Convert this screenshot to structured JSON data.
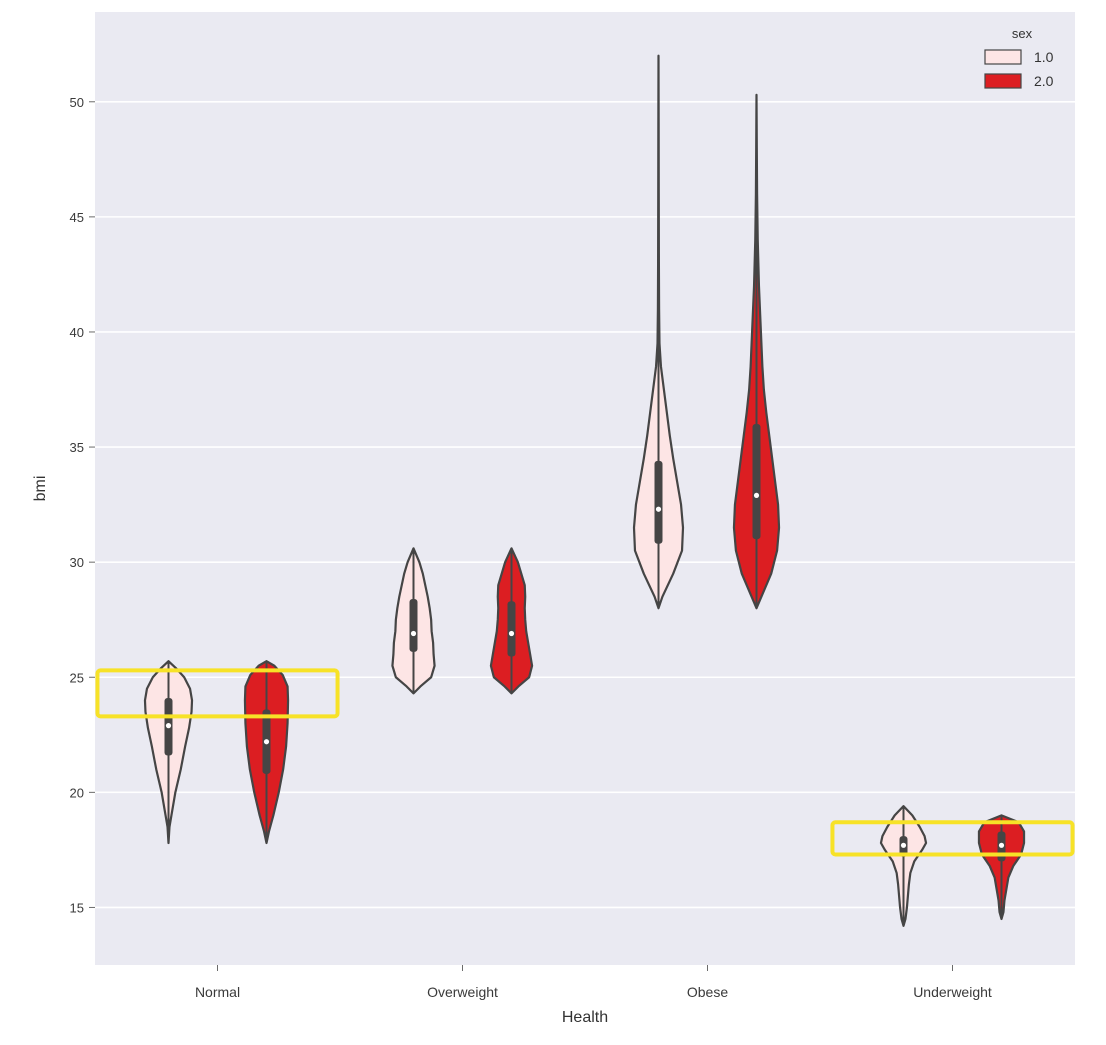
{
  "chart_data": {
    "type": "violin",
    "xlabel": "Health",
    "ylabel": "bmi",
    "categories": [
      "Normal",
      "Overweight",
      "Obese",
      "Underweight"
    ],
    "ylim": [
      12.5,
      53.9
    ],
    "yticks": [
      15,
      20,
      25,
      30,
      35,
      40,
      45,
      50
    ],
    "grid": true,
    "legend": {
      "title": "sex",
      "position": "top-right"
    },
    "series": [
      {
        "name": "1.0",
        "color": "#fde5e5",
        "violins": [
          {
            "category": "Normal",
            "min": 17.8,
            "max": 25.7,
            "q1": 21.6,
            "q3": 24.1,
            "median": 22.9,
            "profile": [
              [
                17.8,
                0
              ],
              [
                18.5,
                0.02
              ],
              [
                19,
                0.06
              ],
              [
                20,
                0.14
              ],
              [
                21,
                0.25
              ],
              [
                22,
                0.34
              ],
              [
                22.8,
                0.42
              ],
              [
                23.5,
                0.47
              ],
              [
                24,
                0.48
              ],
              [
                24.5,
                0.44
              ],
              [
                25,
                0.32
              ],
              [
                25.4,
                0.15
              ],
              [
                25.7,
                0
              ]
            ]
          },
          {
            "category": "Overweight",
            "min": 24.3,
            "max": 30.6,
            "q1": 26.1,
            "q3": 28.4,
            "median": 26.9,
            "profile": [
              [
                24.3,
                0
              ],
              [
                24.6,
                0.14
              ],
              [
                25,
                0.36
              ],
              [
                25.5,
                0.43
              ],
              [
                26,
                0.41
              ],
              [
                26.5,
                0.4
              ],
              [
                27,
                0.37
              ],
              [
                27.5,
                0.36
              ],
              [
                28,
                0.33
              ],
              [
                28.5,
                0.29
              ],
              [
                29,
                0.24
              ],
              [
                29.5,
                0.19
              ],
              [
                30,
                0.12
              ],
              [
                30.6,
                0
              ]
            ]
          },
          {
            "category": "Obese",
            "min": 28.0,
            "max": 52.0,
            "q1": 30.8,
            "q3": 34.4,
            "median": 32.3,
            "profile": [
              [
                28,
                0
              ],
              [
                28.5,
                0.08
              ],
              [
                29.5,
                0.3
              ],
              [
                30.5,
                0.48
              ],
              [
                31.5,
                0.5
              ],
              [
                32.5,
                0.46
              ],
              [
                33.5,
                0.38
              ],
              [
                34.5,
                0.3
              ],
              [
                35.5,
                0.23
              ],
              [
                36.5,
                0.17
              ],
              [
                37.5,
                0.11
              ],
              [
                38.5,
                0.05
              ],
              [
                39.5,
                0.02
              ],
              [
                41,
                0.012
              ],
              [
                43,
                0.008
              ],
              [
                46,
                0.005
              ],
              [
                49,
                0.003
              ],
              [
                52,
                0
              ]
            ]
          },
          {
            "category": "Underweight",
            "min": 14.2,
            "max": 19.4,
            "q1": 17.2,
            "q3": 18.1,
            "median": 17.7,
            "profile": [
              [
                14.2,
                0
              ],
              [
                14.5,
                0.04
              ],
              [
                15,
                0.07
              ],
              [
                15.5,
                0.09
              ],
              [
                16,
                0.11
              ],
              [
                16.5,
                0.14
              ],
              [
                17,
                0.22
              ],
              [
                17.5,
                0.38
              ],
              [
                17.8,
                0.46
              ],
              [
                18.1,
                0.43
              ],
              [
                18.5,
                0.33
              ],
              [
                19,
                0.18
              ],
              [
                19.4,
                0
              ]
            ]
          }
        ]
      },
      {
        "name": "2.0",
        "color": "#dc1e22",
        "violins": [
          {
            "category": "Normal",
            "min": 17.8,
            "max": 25.7,
            "q1": 20.8,
            "q3": 23.6,
            "median": 22.2,
            "profile": [
              [
                17.8,
                0
              ],
              [
                18.3,
                0.05
              ],
              [
                19,
                0.14
              ],
              [
                20,
                0.25
              ],
              [
                21,
                0.34
              ],
              [
                22,
                0.4
              ],
              [
                23,
                0.43
              ],
              [
                24,
                0.44
              ],
              [
                24.6,
                0.43
              ],
              [
                25.1,
                0.33
              ],
              [
                25.5,
                0.16
              ],
              [
                25.7,
                0
              ]
            ]
          },
          {
            "category": "Overweight",
            "min": 24.3,
            "max": 30.6,
            "q1": 25.9,
            "q3": 28.3,
            "median": 26.9,
            "profile": [
              [
                24.3,
                0
              ],
              [
                24.6,
                0.14
              ],
              [
                25,
                0.36
              ],
              [
                25.5,
                0.42
              ],
              [
                26,
                0.38
              ],
              [
                26.5,
                0.34
              ],
              [
                27,
                0.3
              ],
              [
                27.5,
                0.28
              ],
              [
                28,
                0.27
              ],
              [
                28.5,
                0.28
              ],
              [
                29,
                0.27
              ],
              [
                29.5,
                0.2
              ],
              [
                30,
                0.13
              ],
              [
                30.6,
                0
              ]
            ]
          },
          {
            "category": "Obese",
            "min": 28.0,
            "max": 50.3,
            "q1": 31.0,
            "q3": 36.0,
            "median": 32.9,
            "profile": [
              [
                28,
                0
              ],
              [
                28.5,
                0.1
              ],
              [
                29.5,
                0.3
              ],
              [
                30.5,
                0.42
              ],
              [
                31.5,
                0.46
              ],
              [
                32.5,
                0.44
              ],
              [
                33.5,
                0.38
              ],
              [
                34.5,
                0.32
              ],
              [
                35.5,
                0.26
              ],
              [
                36.5,
                0.2
              ],
              [
                37.5,
                0.15
              ],
              [
                38.5,
                0.12
              ],
              [
                40,
                0.09
              ],
              [
                42,
                0.05
              ],
              [
                44,
                0.025
              ],
              [
                46,
                0.012
              ],
              [
                48,
                0.006
              ],
              [
                50.3,
                0
              ]
            ]
          },
          {
            "category": "Underweight",
            "min": 14.5,
            "max": 19.0,
            "q1": 17.0,
            "q3": 18.3,
            "median": 17.7,
            "profile": [
              [
                14.5,
                0
              ],
              [
                14.8,
                0.04
              ],
              [
                15.3,
                0.06
              ],
              [
                15.8,
                0.1
              ],
              [
                16.3,
                0.14
              ],
              [
                16.8,
                0.24
              ],
              [
                17.3,
                0.4
              ],
              [
                17.8,
                0.46
              ],
              [
                18.3,
                0.46
              ],
              [
                18.7,
                0.35
              ],
              [
                19,
                0
              ]
            ]
          }
        ]
      }
    ],
    "annotations": [
      {
        "type": "highlight-box",
        "color": "#f7e227",
        "xrange": [
          "Normal",
          "Normal"
        ],
        "yrange": [
          23.3,
          25.3
        ]
      },
      {
        "type": "highlight-box",
        "color": "#f7e227",
        "xrange": [
          "Underweight",
          "Underweight"
        ],
        "yrange": [
          17.3,
          18.7
        ]
      }
    ]
  }
}
